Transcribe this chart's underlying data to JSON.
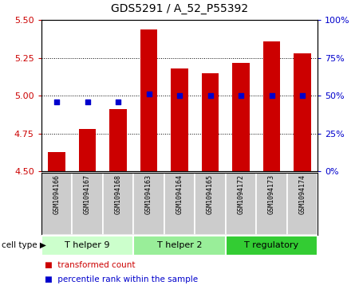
{
  "title": "GDS5291 / A_52_P55392",
  "samples": [
    "GSM1094166",
    "GSM1094167",
    "GSM1094168",
    "GSM1094163",
    "GSM1094164",
    "GSM1094165",
    "GSM1094172",
    "GSM1094173",
    "GSM1094174"
  ],
  "transformed_counts": [
    4.63,
    4.78,
    4.91,
    5.44,
    5.18,
    5.15,
    5.22,
    5.36,
    5.28
  ],
  "percentile_ranks": [
    46,
    46,
    46,
    51,
    50,
    50,
    50,
    50,
    50
  ],
  "ylim_left": [
    4.5,
    5.5
  ],
  "ylim_right": [
    0,
    100
  ],
  "yticks_left": [
    4.5,
    4.75,
    5.0,
    5.25,
    5.5
  ],
  "yticks_right": [
    0,
    25,
    50,
    75,
    100
  ],
  "ytick_labels_right": [
    "0%",
    "25%",
    "50%",
    "75%",
    "100%"
  ],
  "bar_color": "#cc0000",
  "dot_color": "#0000cc",
  "cell_types": [
    {
      "label": "T helper 9",
      "samples": [
        0,
        1,
        2
      ],
      "color": "#ccffcc"
    },
    {
      "label": "T helper 2",
      "samples": [
        3,
        4,
        5
      ],
      "color": "#99ee99"
    },
    {
      "label": "T regulatory",
      "samples": [
        6,
        7,
        8
      ],
      "color": "#33cc33"
    }
  ],
  "cell_type_label": "cell type",
  "legend_items": [
    {
      "label": "transformed count",
      "color": "#cc0000"
    },
    {
      "label": "percentile rank within the sample",
      "color": "#0000cc"
    }
  ],
  "bar_bottom": 4.5,
  "tick_label_color_left": "#cc0000",
  "tick_label_color_right": "#0000cc",
  "grid_yticks": [
    4.75,
    5.0,
    5.25
  ],
  "sample_bg_color": "#cccccc",
  "title_fontsize": 10,
  "axis_fontsize": 8,
  "legend_fontsize": 7.5,
  "sample_fontsize": 6
}
